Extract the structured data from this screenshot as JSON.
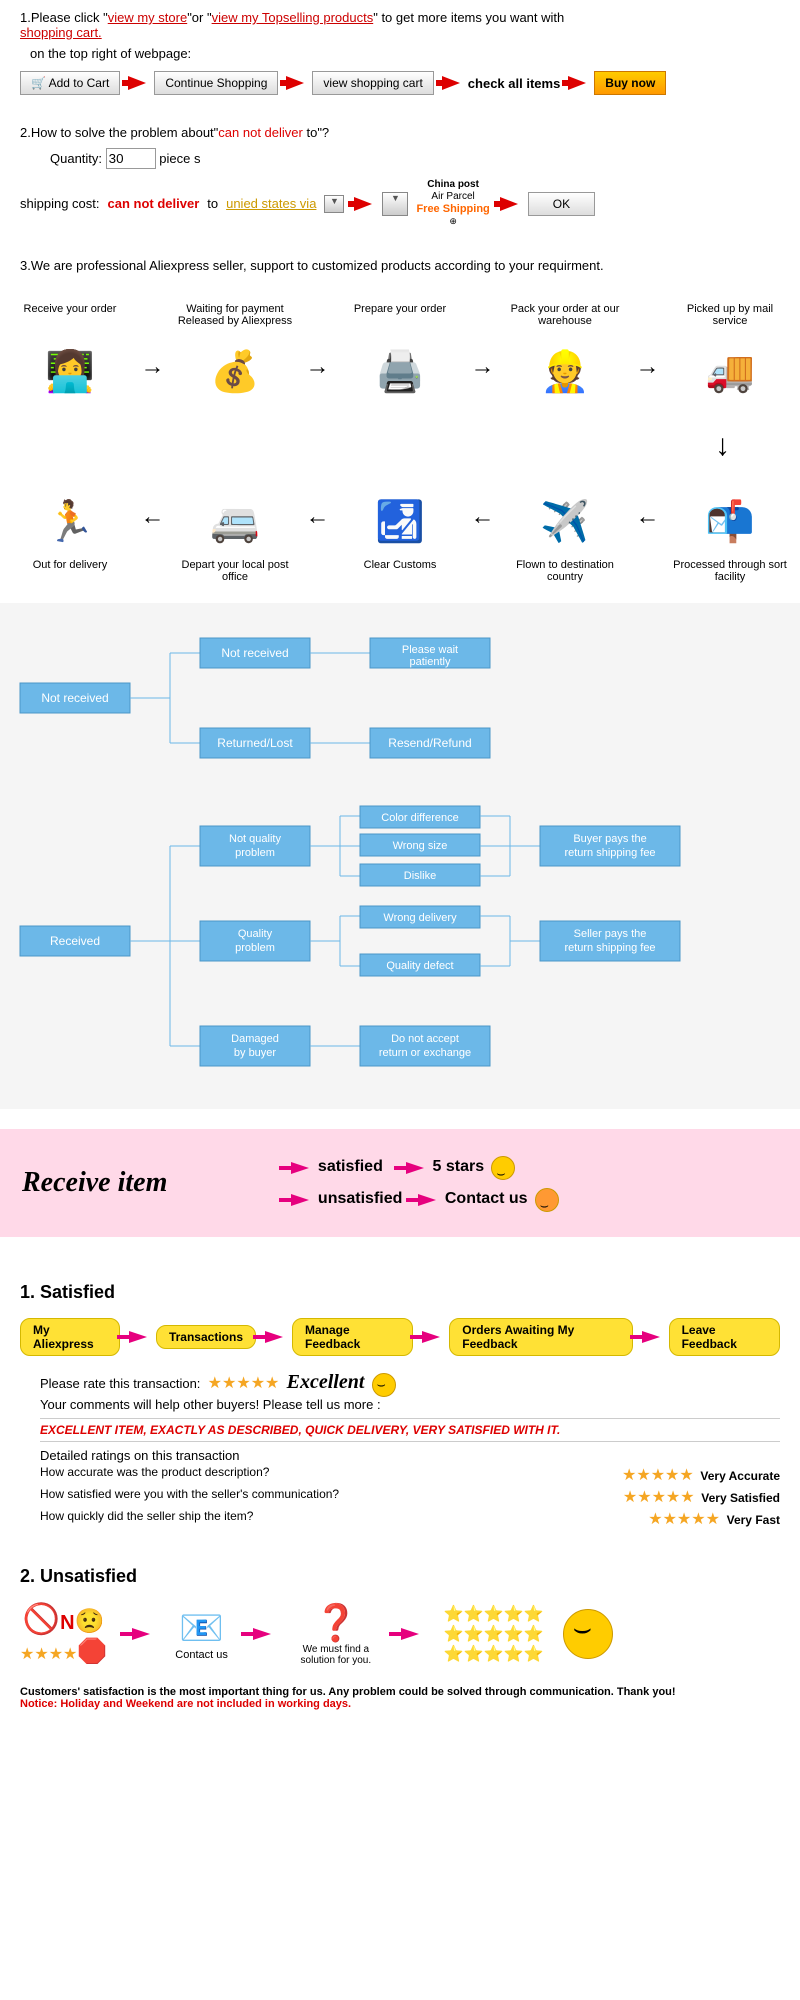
{
  "intro": {
    "line1_prefix": "1.Please click \"",
    "link_store": "view my store",
    "line1_mid": "\"or \"",
    "link_topselling": "view my Topselling products",
    "line1_suffix": "\" to get more items you want with",
    "shopping_cart": "shopping cart.",
    "line2": "on the top right of webpage:"
  },
  "buttons": {
    "add_to_cart": "🛒  Add to Cart",
    "continue": "Continue Shopping",
    "view_cart": "view shopping cart",
    "check_all": "check all items",
    "buy_now": "Buy now"
  },
  "q2": {
    "text": "2.How to solve the problem about\"",
    "cannot_deliver": "can not deliver",
    "to": " to\"?",
    "quantity": "Quantity:",
    "qty_val": "30",
    "pieces": "piece s",
    "shipping": "shipping cost:",
    "cannot2": "can not deliver",
    "to2": " to ",
    "us_via": "unied states via",
    "china_post": "China post",
    "air_parcel": "Air Parcel",
    "free_ship": "Free Shipping",
    "ok": "OK"
  },
  "q3": "3.We are professional Aliexpress seller, support to customized products according to your requirment.",
  "process_top": [
    {
      "label": "Receive your order",
      "icon": "👩‍💻"
    },
    {
      "label": "Waiting for payment Released by Aliexpress",
      "icon": "💰"
    },
    {
      "label": "Prepare your order",
      "icon": "🖨️"
    },
    {
      "label": "Pack your order at our warehouse",
      "icon": "👷"
    },
    {
      "label": "Picked up by mail service",
      "icon": "🚚"
    }
  ],
  "process_bottom": [
    {
      "label": "Out for delivery",
      "icon": "🏃"
    },
    {
      "label": "Depart your local post office",
      "icon": "🚐"
    },
    {
      "label": "Clear Customs",
      "icon": "🛃"
    },
    {
      "label": "Flown to destination country",
      "icon": "✈️"
    },
    {
      "label": "Processed through sort facility",
      "icon": "📬"
    }
  ],
  "flow": {
    "not_received": "Not received",
    "not_received2": "Not received",
    "please_wait": "Please wait patiently",
    "returned": "Returned/Lost",
    "resend": "Resend/Refund",
    "received": "Received",
    "not_quality": "Not quality problem",
    "color_diff": "Color difference",
    "wrong_size": "Wrong size",
    "dislike": "Dislike",
    "buyer_pays": "Buyer pays the return shipping fee",
    "quality": "Quality problem",
    "wrong_delivery": "Wrong delivery",
    "quality_defect": "Quality defect",
    "seller_pays": "Seller pays the return shipping fee",
    "damaged": "Damaged by buyer",
    "no_return": "Do not accept return or exchange"
  },
  "pink": {
    "receive": "Receive item",
    "satisfied": "satisfied",
    "unsatisfied": "unsatisfied",
    "five_stars": "5 stars",
    "contact_us": "Contact us"
  },
  "sat": {
    "title": "1.  Satisfied",
    "steps": [
      "My Aliexpress",
      "Transactions",
      "Manage Feedback",
      "Orders Awaiting My Feedback",
      "Leave Feedback"
    ],
    "rate_label": "Please rate this transaction:",
    "excellent": "Excellent",
    "comments": "Your comments will help other buyers! Please tell us more :",
    "review": "EXCELLENT ITEM, EXACTLY AS DESCRIBED, QUICK DELIVERY, VERY SATISFIED WITH IT.",
    "detailed": "Detailed ratings on this transaction",
    "q1": "How accurate was the product description?",
    "q2": "How satisfied were you with the seller's communication?",
    "q3": "How quickly did the seller ship the item?",
    "a1": "Very Accurate",
    "a2": "Very Satisfied",
    "a3": "Very Fast"
  },
  "unsat": {
    "title": "2.  Unsatisfied",
    "contact": "Contact us",
    "find_solution": "We must find a solution for you.",
    "footer1": "Customers' satisfaction is the most important thing for us. Any problem could be solved through communication. Thank you!",
    "footer2": "Notice: Holiday and Weekend are not included in working days."
  },
  "colors": {
    "red": "#d00",
    "flow_blue": "#6cb8e8",
    "pink_bg": "#ffd9e8",
    "yellow": "#ffe135",
    "orange_btn": "#ff9900",
    "star": "#f5a623",
    "magenta": "#e6007e"
  }
}
